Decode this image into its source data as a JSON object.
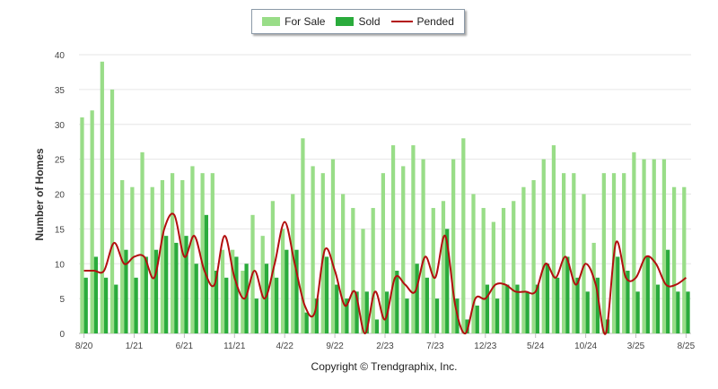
{
  "colors": {
    "for_sale": "#99dd88",
    "sold": "#2aab3c",
    "pended": "#b30f0f",
    "grid": "#e6e6e6",
    "axis_text": "#444444"
  },
  "legend": {
    "for_sale": "For Sale",
    "sold": "Sold",
    "pended": "Pended"
  },
  "y_axis_title": "Number of Homes",
  "copyright": "Copyright © Trendgraphix, Inc.",
  "chart_data": {
    "type": "bar",
    "ylabel": "Number of Homes",
    "ylim": [
      0,
      40
    ],
    "y_ticks": [
      0,
      5,
      10,
      15,
      20,
      25,
      30,
      35,
      40
    ],
    "grid": true,
    "legend_position": "top",
    "categories": [
      "8/20",
      "9/20",
      "10/20",
      "11/20",
      "12/20",
      "1/21",
      "2/21",
      "3/21",
      "4/21",
      "5/21",
      "6/21",
      "7/21",
      "8/21",
      "9/21",
      "10/21",
      "11/21",
      "12/21",
      "1/22",
      "2/22",
      "3/22",
      "4/22",
      "5/22",
      "6/22",
      "7/22",
      "8/22",
      "9/22",
      "10/22",
      "11/22",
      "12/22",
      "1/23",
      "2/23",
      "3/23",
      "4/23",
      "5/23",
      "6/23",
      "7/23",
      "8/23",
      "9/23",
      "10/23",
      "11/23",
      "12/23",
      "1/24",
      "2/24",
      "3/24",
      "4/24",
      "5/24",
      "6/24",
      "7/24",
      "8/24",
      "9/24",
      "10/24",
      "11/24",
      "12/24",
      "1/25",
      "2/25",
      "3/25",
      "4/25",
      "5/25",
      "6/25",
      "7/25",
      "8/25"
    ],
    "x_tick_labels": [
      "8/20",
      "1/21",
      "6/21",
      "11/21",
      "4/22",
      "9/22",
      "2/23",
      "7/23",
      "12/23",
      "5/24",
      "10/24",
      "3/25",
      "8/25"
    ],
    "series": [
      {
        "name": "For Sale",
        "type": "bar",
        "values": [
          31,
          32,
          39,
          35,
          22,
          21,
          26,
          21,
          22,
          23,
          22,
          24,
          23,
          23,
          12,
          12,
          9,
          17,
          14,
          19,
          15,
          20,
          28,
          24,
          23,
          25,
          20,
          18,
          15,
          18,
          23,
          27,
          24,
          27,
          25,
          18,
          19,
          25,
          28,
          20,
          18,
          16,
          18,
          19,
          21,
          22,
          25,
          27,
          23,
          23,
          20,
          13,
          23,
          23,
          23,
          26,
          25,
          25,
          25,
          21,
          21
        ]
      },
      {
        "name": "Sold",
        "type": "bar",
        "values": [
          8,
          11,
          8,
          7,
          12,
          8,
          11,
          12,
          14,
          13,
          14,
          10,
          17,
          9,
          8,
          11,
          10,
          5,
          10,
          8,
          12,
          12,
          3,
          5,
          11,
          7,
          5,
          6,
          6,
          2,
          6,
          9,
          5,
          10,
          8,
          5,
          15,
          5,
          2,
          4,
          7,
          5,
          7,
          7,
          6,
          7,
          10,
          8,
          11,
          8,
          6,
          8,
          2,
          11,
          9,
          6,
          11,
          7,
          12,
          6,
          6
        ]
      },
      {
        "name": "Pended",
        "type": "line",
        "values": [
          9,
          9,
          9,
          13,
          10,
          11,
          11,
          8,
          15,
          17,
          11,
          14,
          9,
          7,
          14,
          8,
          5,
          9,
          5,
          10,
          16,
          10,
          4,
          3,
          12,
          9,
          4,
          6,
          0,
          6,
          2,
          8,
          7,
          6,
          11,
          8,
          14,
          4,
          0,
          5,
          5,
          7,
          7,
          6,
          6,
          6,
          10,
          8,
          11,
          7,
          10,
          7,
          0,
          13,
          8,
          8,
          11,
          10,
          7,
          7,
          8
        ]
      }
    ]
  }
}
